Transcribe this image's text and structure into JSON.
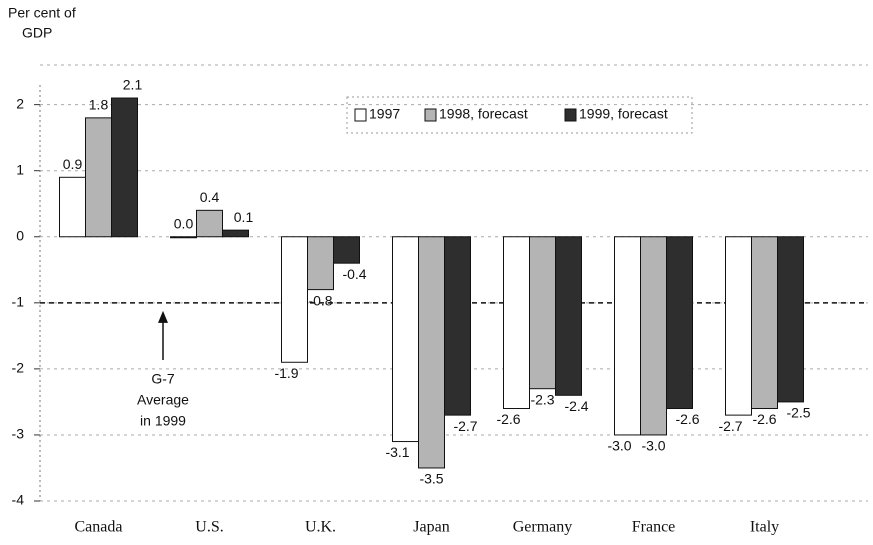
{
  "chart_data": {
    "type": "bar",
    "y_label": [
      "Per cent of",
      "GDP"
    ],
    "categories": [
      "Canada",
      "U.S.",
      "U.K.",
      "Japan",
      "Germany",
      "France",
      "Italy"
    ],
    "series": [
      {
        "name": "1997",
        "color": "#ffffff",
        "values": [
          0.9,
          0.0,
          -1.9,
          -3.1,
          -2.6,
          -3.0,
          -2.7
        ],
        "value_labels": [
          "0.9",
          "0.0",
          "-1.9",
          "-3.1",
          "-2.6",
          "-3.0",
          "-2.7"
        ]
      },
      {
        "name": "1998, forecast",
        "color": "#b4b4b4",
        "values": [
          1.8,
          0.4,
          -0.8,
          -3.5,
          -2.3,
          -3.0,
          -2.6
        ],
        "value_labels": [
          "1.8",
          "0.4",
          "-0.8",
          "-3.5",
          "-2.3",
          "-3.0",
          "-2.6"
        ]
      },
      {
        "name": "1999, forecast",
        "color": "#2e2e2e",
        "values": [
          2.1,
          0.1,
          -0.4,
          -2.7,
          -2.4,
          -2.6,
          -2.5
        ],
        "value_labels": [
          "2.1",
          "0.1",
          "-0.4",
          "-2.7",
          "-2.4",
          "-2.6",
          "-2.5"
        ]
      }
    ],
    "average": -1,
    "annotation": [
      "G-7",
      "Average",
      "in 1999"
    ],
    "ylim": [
      -4,
      2.6
    ],
    "yticks": [
      -4,
      -3,
      -2,
      -1,
      0,
      1,
      2
    ],
    "grid": true
  }
}
